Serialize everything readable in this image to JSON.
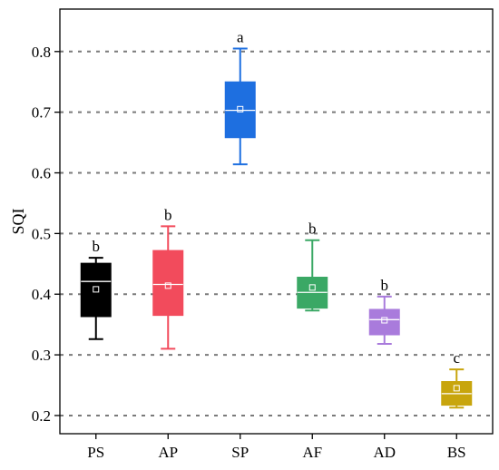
{
  "chart_data": {
    "type": "box",
    "title": "",
    "xlabel": "",
    "ylabel": "SQI",
    "ylim": [
      0.17,
      0.87
    ],
    "yticks": [
      0.2,
      0.3,
      0.4,
      0.5,
      0.6,
      0.7,
      0.8
    ],
    "ytick_labels": [
      "0.2",
      "0.3",
      "0.4",
      "0.5",
      "0.6",
      "0.7",
      "0.8"
    ],
    "grid": "horizontal-dashed",
    "legend": "none",
    "categories": [
      "PS",
      "AP",
      "SP",
      "AF",
      "AD",
      "BS"
    ],
    "boxes": [
      {
        "category": "PS",
        "min": 0.326,
        "q1": 0.363,
        "median": 0.421,
        "q3": 0.451,
        "max": 0.46,
        "mean": 0.408,
        "group_label": "b",
        "color": "#000000"
      },
      {
        "category": "AP",
        "min": 0.31,
        "q1": 0.365,
        "median": 0.416,
        "q3": 0.472,
        "max": 0.512,
        "mean": 0.414,
        "group_label": "b",
        "color": "#f24b5c"
      },
      {
        "category": "SP",
        "min": 0.614,
        "q1": 0.658,
        "median": 0.703,
        "q3": 0.75,
        "max": 0.805,
        "mean": 0.705,
        "group_label": "a",
        "color": "#1e6fe0"
      },
      {
        "category": "AF",
        "min": 0.373,
        "q1": 0.377,
        "median": 0.403,
        "q3": 0.428,
        "max": 0.489,
        "mean": 0.411,
        "group_label": "b",
        "color": "#3aa865"
      },
      {
        "category": "AD",
        "min": 0.318,
        "q1": 0.333,
        "median": 0.358,
        "q3": 0.375,
        "max": 0.396,
        "mean": 0.357,
        "group_label": "b",
        "color": "#a97bdc"
      },
      {
        "category": "BS",
        "min": 0.213,
        "q1": 0.217,
        "median": 0.236,
        "q3": 0.256,
        "max": 0.276,
        "mean": 0.245,
        "group_label": "c",
        "color": "#c8a50d"
      }
    ]
  }
}
